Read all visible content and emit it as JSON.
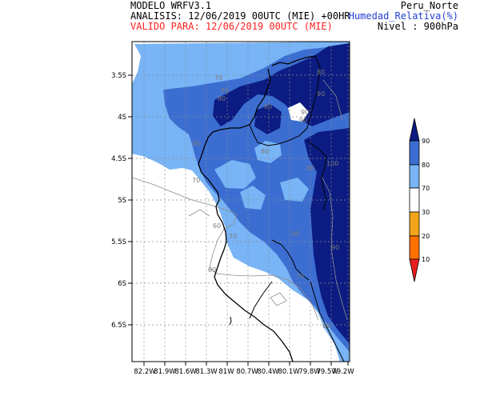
{
  "header": {
    "model": "MODELO WRFV3.1",
    "analysis": "ANALISIS: 12/06/2019 00UTC (MIE) +00HR",
    "valid": "VALIDO PARA: 12/06/2019 00UTC (MIE)",
    "region": "Peru_Norte",
    "variable": "Humedad_Relativa(%)",
    "level": "Nivel : 900hPa"
  },
  "colors": {
    "c70_80": "#78b4f6",
    "c80_90": "#3c6ed2",
    "c90": "#0c1c82",
    "c20_30": "#f2a41a",
    "c10_20": "#ff7000",
    "c0_10": "#e81e1e"
  },
  "map": {
    "lat_labels": [
      "3.5S",
      "4S",
      "4.5S",
      "5S",
      "5.5S",
      "6S",
      "6.5S"
    ],
    "lon_labels": [
      "82.2W",
      "81.9W",
      "81.6W",
      "81.3W",
      "81W",
      "80.7W",
      "80.4W",
      "80.1W",
      "79.8W",
      "79.5W",
      "79.2W"
    ],
    "contour_labels": [
      "70",
      "80",
      "80",
      "80",
      "90",
      "80",
      "90",
      "90",
      "80",
      "80",
      "80",
      "100",
      "70",
      "60",
      "70",
      "90",
      "60",
      "70",
      "60",
      "90"
    ]
  },
  "colorbar": {
    "labels": [
      "90",
      "80",
      "70",
      "30",
      "20",
      "10"
    ]
  }
}
